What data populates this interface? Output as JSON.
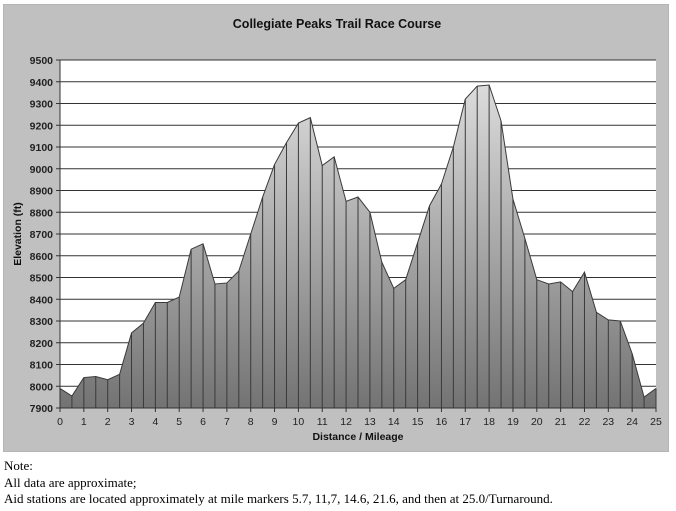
{
  "chart_data": {
    "type": "area",
    "title": "Collegiate Peaks Trail Race Course",
    "xlabel": "Distance / Mileage",
    "ylabel": "Elevation (ft)",
    "xlim": [
      0,
      25
    ],
    "ylim": [
      7900,
      9500
    ],
    "x_ticks": [
      0,
      1,
      2,
      3,
      4,
      5,
      6,
      7,
      8,
      9,
      10,
      11,
      12,
      13,
      14,
      15,
      16,
      17,
      18,
      19,
      20,
      21,
      22,
      23,
      24,
      25
    ],
    "y_ticks": [
      7900,
      8000,
      8100,
      8200,
      8300,
      8400,
      8500,
      8600,
      8700,
      8800,
      8900,
      9000,
      9100,
      9200,
      9300,
      9400,
      9500
    ],
    "grid": "horizontal",
    "legend": "none",
    "x": [
      0,
      0.5,
      1,
      1.5,
      2,
      2.5,
      3,
      3.5,
      4,
      4.5,
      5,
      5.5,
      6,
      6.5,
      7,
      7.5,
      8,
      8.5,
      9,
      9.5,
      10,
      10.5,
      11,
      11.5,
      12,
      12.5,
      13,
      13.5,
      14,
      14.5,
      15,
      15.5,
      16,
      16.5,
      17,
      17.5,
      18,
      18.5,
      19,
      19.5,
      20,
      20.5,
      21,
      21.5,
      22,
      22.5,
      23,
      23.5,
      24,
      24.5,
      25
    ],
    "series": [
      {
        "name": "Elevation",
        "values": [
          7990,
          7955,
          8040,
          8045,
          8030,
          8055,
          8245,
          8290,
          8385,
          8385,
          8410,
          8630,
          8655,
          8470,
          8475,
          8530,
          8700,
          8870,
          9020,
          9120,
          9210,
          9235,
          9015,
          9055,
          8850,
          8870,
          8800,
          8570,
          8450,
          8490,
          8660,
          8830,
          8930,
          9100,
          9320,
          9380,
          9385,
          9220,
          8860,
          8680,
          8490,
          8470,
          8480,
          8435,
          8525,
          8340,
          8305,
          8300,
          8150,
          7950,
          7990
        ]
      }
    ]
  },
  "notes": {
    "heading": "Note:",
    "line1": "All data are approximate;",
    "line2": "Aid stations are located approximately at mile markers 5.7, 11,7, 14.6, 21.6, and then at 25.0/Turnaround."
  },
  "colors": {
    "panel_bg": "#c0c0c0",
    "plot_bg": "#ffffff",
    "area_top": "#d8d8d8",
    "area_bottom": "#7a7a7a",
    "gridline": "#333333",
    "area_stroke": "#3a3a3a"
  }
}
